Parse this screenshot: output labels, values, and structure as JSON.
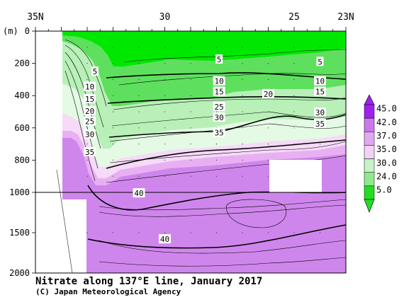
{
  "chart_data": {
    "type": "heatmap",
    "title": "Nitrate along 137°E line, January 2017",
    "credit": "(C) Japan Meteorological Agency",
    "y_unit": "(m)",
    "x_ticks": [
      "35N",
      "30",
      "25",
      "23N"
    ],
    "x_tick_values": [
      35,
      30,
      25,
      23
    ],
    "x_range": [
      35,
      23
    ],
    "y_ticks": [
      "0",
      "200",
      "400",
      "600",
      "800",
      "1000",
      "1500",
      "2000"
    ],
    "y_tick_values": [
      0,
      200,
      400,
      600,
      800,
      1000,
      1500,
      2000
    ],
    "y_range": [
      0,
      2000
    ],
    "y_break": 1000,
    "legend_labels": [
      "45.0",
      "42.0",
      "37.0",
      "35.0",
      "30.0",
      "24.0",
      "5.0"
    ],
    "legend_colors": [
      "#a020f0",
      "#cc77ee",
      "#e2a8f4",
      "#f3d2f8",
      "#c8f2c8",
      "#8fea8f",
      "#22dd22"
    ],
    "colors": {
      "surface_green": "#00e800",
      "mid_green": "#5ee05e",
      "light_green": "#b8f0b8",
      "pale_green": "#e4fae4",
      "pale_pink": "#f6daf8",
      "pink": "#e8b0f2",
      "violet": "#cf86ec"
    },
    "contour_labels": [
      {
        "text": "5",
        "lat": 27.9,
        "depth": 175
      },
      {
        "text": "5",
        "lat": 24.0,
        "depth": 190
      },
      {
        "text": "5",
        "lat": 32.7,
        "depth": 250
      },
      {
        "text": "10",
        "lat": 27.9,
        "depth": 310
      },
      {
        "text": "10",
        "lat": 24.0,
        "depth": 310
      },
      {
        "text": "10",
        "lat": 32.9,
        "depth": 345
      },
      {
        "text": "15",
        "lat": 27.9,
        "depth": 375
      },
      {
        "text": "15",
        "lat": 24.0,
        "depth": 375
      },
      {
        "text": "15",
        "lat": 32.9,
        "depth": 420
      },
      {
        "text": "20",
        "lat": 26.0,
        "depth": 390
      },
      {
        "text": "20",
        "lat": 32.9,
        "depth": 495
      },
      {
        "text": "25",
        "lat": 27.9,
        "depth": 470
      },
      {
        "text": "25",
        "lat": 32.9,
        "depth": 560
      },
      {
        "text": "30",
        "lat": 27.9,
        "depth": 535
      },
      {
        "text": "30",
        "lat": 24.0,
        "depth": 505
      },
      {
        "text": "30",
        "lat": 32.9,
        "depth": 640
      },
      {
        "text": "35",
        "lat": 27.9,
        "depth": 630
      },
      {
        "text": "35",
        "lat": 24.0,
        "depth": 575
      },
      {
        "text": "35",
        "lat": 32.9,
        "depth": 750
      },
      {
        "text": "40",
        "lat": 31.0,
        "depth": 1010
      },
      {
        "text": "40",
        "lat": 30.0,
        "depth": 1580
      }
    ]
  }
}
